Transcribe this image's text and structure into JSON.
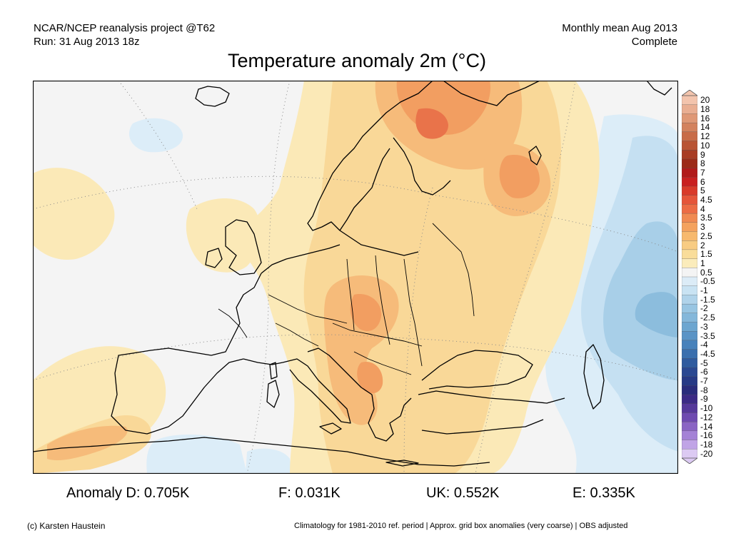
{
  "header": {
    "project": "NCAR/NCEP reanalysis project @T62",
    "run": "Run: 31 Aug 2013 18z",
    "period": "Monthly mean Aug 2013",
    "status": "Complete"
  },
  "title": "Temperature anomaly 2m (°C)",
  "colorbar": {
    "ticks": [
      "20",
      "18",
      "16",
      "14",
      "12",
      "10",
      "9",
      "8",
      "7",
      "6",
      "5",
      "4.5",
      "4",
      "3.5",
      "3",
      "2.5",
      "2",
      "1.5",
      "1",
      "0.5",
      "-0.5",
      "-1",
      "-1.5",
      "-2",
      "-2.5",
      "-3",
      "-3.5",
      "-4",
      "-4.5",
      "-5",
      "-6",
      "-7",
      "-8",
      "-9",
      "-10",
      "-12",
      "-14",
      "-16",
      "-18",
      "-20"
    ],
    "colors": [
      "#f3c4ad",
      "#e9ae92",
      "#df9876",
      "#d3825e",
      "#c86c48",
      "#b95434",
      "#a83c24",
      "#9c2a18",
      "#b11a1a",
      "#c92020",
      "#d93a2a",
      "#e5553a",
      "#ec6c45",
      "#f08a52",
      "#f4a25e",
      "#f7b96e",
      "#f8cc83",
      "#f9dd9a",
      "#fbecbb",
      "#f4f4f4",
      "#dcecf7",
      "#c9e3f3",
      "#b0d3ea",
      "#98c5e2",
      "#84b7da",
      "#6da6d0",
      "#5a94c6",
      "#4882bb",
      "#3a6fae",
      "#2f5b9f",
      "#2a4892",
      "#273a86",
      "#2a2c7c",
      "#3c2a86",
      "#55389a",
      "#6e4ab0",
      "#8a64c4",
      "#a482d6",
      "#c0a4e6",
      "#dccaf3"
    ]
  },
  "map_colors": {
    "background": "#f4f4f4",
    "warm_light": "#fbe9b7",
    "warm_1": "#f9d898",
    "warm_2": "#f6bb7a",
    "warm_3": "#f29e61",
    "warm_4": "#e9734a",
    "cool_light": "#dcedf8",
    "cool_1": "#c5e0f2",
    "cool_2": "#a8cfe8",
    "cool_3": "#8cbddd",
    "coast": "#000000"
  },
  "anomalies": [
    {
      "label": "Anomaly D: 0.705K"
    },
    {
      "label": "F: 0.031K"
    },
    {
      "label": "UK: 0.552K"
    },
    {
      "label": "E: 0.335K"
    }
  ],
  "footer": {
    "credit": "(c) Karsten Haustein",
    "note": "Climatology for 1981-2010 ref. period | Approx. grid box anomalies (very coarse) | OBS adjusted"
  }
}
